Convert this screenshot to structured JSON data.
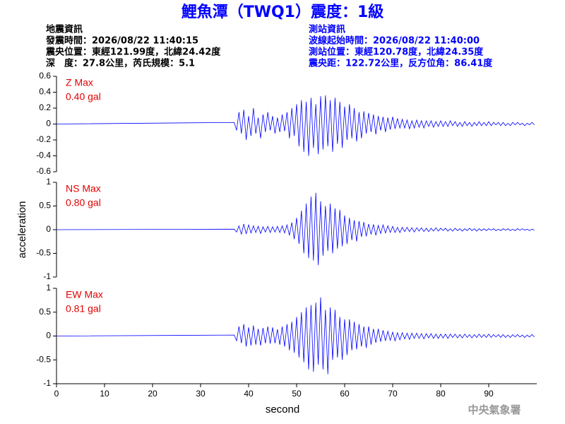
{
  "header": {
    "title": "鯉魚潭（TWQ1）震度：1級",
    "left": [
      "地震資訊",
      "發震時間：2026/08/22 11:40:15",
      "震央位置：東經121.99度，北緯24.42度",
      "深　度：27.8公里，芮氏規模：5.1"
    ],
    "right": [
      "測站資訊",
      "波線起始時間：2026/08/22 11:40:00",
      "測站位置：東經120.78度，北緯24.35度",
      "震央距：122.72公里，反方位角：86.41度"
    ]
  },
  "footer": "中央氣象署",
  "chart_data": [
    {
      "type": "line",
      "name": "Z Max",
      "max_label": "0.40 gal",
      "color": "#0000ff",
      "xlim": [
        0,
        100
      ],
      "ylim": [
        -0.6,
        0.6
      ],
      "yticks": [
        0.6,
        0.4,
        0.2,
        0,
        -0.2,
        -0.4,
        -0.6
      ],
      "x": [
        0,
        37,
        37.5,
        38,
        38.5,
        39,
        39.5,
        40,
        40.5,
        41,
        41.5,
        42,
        42.5,
        43,
        43.5,
        44,
        44.5,
        45,
        45.5,
        46,
        46.5,
        47,
        47.5,
        48,
        48.5,
        49,
        49.5,
        50,
        50.5,
        51,
        51.5,
        52,
        52.5,
        53,
        53.5,
        54,
        54.5,
        55,
        55.5,
        56,
        56.5,
        57,
        57.5,
        58,
        58.5,
        59,
        59.5,
        60,
        60.5,
        61,
        61.5,
        62,
        62.5,
        63,
        63.5,
        64,
        64.5,
        65,
        65.5,
        66,
        66.5,
        67,
        67.5,
        68,
        68.5,
        69,
        69.5,
        70,
        70.5,
        71,
        71.5,
        72,
        72.5,
        73,
        73.5,
        74,
        74.5,
        75,
        75.5,
        76,
        76.5,
        77,
        77.5,
        78,
        78.5,
        79,
        79.5,
        80,
        80.5,
        81,
        81.5,
        82,
        82.5,
        83,
        83.5,
        84,
        84.5,
        85,
        85.5,
        86,
        86.5,
        87,
        87.5,
        88,
        88.5,
        89,
        89.5,
        90,
        90.5,
        91,
        91.5,
        92,
        92.5,
        93,
        93.5,
        94,
        94.5,
        95,
        95.5,
        96,
        96.5,
        97,
        97.5,
        98,
        98.5,
        99,
        99.5
      ],
      "values": [
        0,
        0.02,
        -0.08,
        0.15,
        -0.12,
        0.18,
        -0.2,
        0.1,
        -0.15,
        0.2,
        -0.12,
        0.08,
        -0.18,
        0.12,
        -0.1,
        0.15,
        -0.08,
        0.1,
        -0.12,
        0.08,
        -0.1,
        0.12,
        -0.09,
        0.15,
        -0.18,
        0.2,
        -0.15,
        0.25,
        -0.28,
        0.3,
        -0.35,
        0.28,
        -0.4,
        0.33,
        -0.3,
        0.25,
        -0.38,
        0.35,
        -0.32,
        0.36,
        -0.28,
        0.3,
        -0.35,
        0.33,
        -0.25,
        0.28,
        -0.3,
        0.22,
        -0.2,
        0.25,
        -0.18,
        0.2,
        -0.22,
        0.15,
        -0.18,
        0.16,
        -0.12,
        0.14,
        -0.1,
        0.12,
        -0.13,
        0.1,
        -0.08,
        0.09,
        -0.1,
        0.08,
        -0.07,
        0.09,
        -0.06,
        0.07,
        -0.05,
        0.06,
        -0.05,
        0.05,
        -0.06,
        0.04,
        -0.05,
        0.05,
        -0.04,
        0.04,
        -0.05,
        0.04,
        -0.03,
        0.04,
        -0.04,
        0.03,
        -0.03,
        0.04,
        -0.03,
        0.03,
        -0.03,
        0.04,
        -0.02,
        0.03,
        -0.03,
        0.02,
        -0.03,
        0.03,
        -0.02,
        0.02,
        -0.03,
        0.02,
        -0.02,
        0.03,
        -0.02,
        0.02,
        -0.02,
        0.03,
        -0.02,
        0.02,
        -0.01,
        0.02,
        -0.02,
        0.02,
        -0.02,
        0.01,
        -0.02,
        0.02,
        -0.01,
        0.02,
        -0.01,
        0.01,
        -0.02,
        0.01,
        -0.01,
        0.02,
        -0.01
      ]
    },
    {
      "type": "line",
      "name": "NS Max",
      "max_label": "0.80 gal",
      "color": "#0000ff",
      "xlim": [
        0,
        100
      ],
      "ylim": [
        -1,
        1
      ],
      "yticks": [
        1,
        0.5,
        0,
        -0.5,
        -1
      ],
      "y_label": "acceleration",
      "x": [
        0,
        37,
        37.5,
        38,
        38.5,
        39,
        39.5,
        40,
        40.5,
        41,
        41.5,
        42,
        42.5,
        43,
        43.5,
        44,
        44.5,
        45,
        45.5,
        46,
        46.5,
        47,
        47.5,
        48,
        48.5,
        49,
        49.5,
        50,
        50.5,
        51,
        51.5,
        52,
        52.5,
        53,
        53.5,
        54,
        54.5,
        55,
        55.5,
        56,
        56.5,
        57,
        57.5,
        58,
        58.5,
        59,
        59.5,
        60,
        60.5,
        61,
        61.5,
        62,
        62.5,
        63,
        63.5,
        64,
        64.5,
        65,
        65.5,
        66,
        66.5,
        67,
        67.5,
        68,
        68.5,
        69,
        69.5,
        70,
        70.5,
        71,
        71.5,
        72,
        72.5,
        73,
        73.5,
        74,
        74.5,
        75,
        75.5,
        76,
        76.5,
        77,
        77.5,
        78,
        78.5,
        79,
        79.5,
        80,
        80.5,
        81,
        81.5,
        82,
        82.5,
        83,
        83.5,
        84,
        84.5,
        85,
        85.5,
        86,
        86.5,
        87,
        87.5,
        88,
        88.5,
        89,
        89.5,
        90,
        90.5,
        91,
        91.5,
        92,
        92.5,
        93,
        93.5,
        94,
        94.5,
        95,
        95.5,
        96,
        96.5,
        97,
        97.5,
        98,
        98.5,
        99,
        99.5
      ],
      "values": [
        0,
        0.01,
        -0.05,
        0.08,
        -0.1,
        0.12,
        -0.09,
        0.1,
        -0.07,
        0.08,
        -0.06,
        0.07,
        -0.08,
        0.06,
        -0.05,
        0.07,
        -0.06,
        0.06,
        -0.05,
        0.07,
        -0.06,
        0.08,
        -0.07,
        0.1,
        -0.12,
        0.15,
        -0.2,
        0.25,
        -0.3,
        0.4,
        -0.5,
        0.55,
        -0.6,
        0.7,
        -0.65,
        0.78,
        -0.75,
        0.6,
        -0.55,
        0.5,
        -0.45,
        0.55,
        -0.5,
        0.45,
        -0.4,
        0.42,
        -0.35,
        0.3,
        -0.3,
        0.25,
        -0.22,
        0.2,
        -0.25,
        0.18,
        -0.15,
        0.16,
        -0.14,
        0.12,
        -0.1,
        0.11,
        -0.12,
        0.09,
        -0.08,
        0.1,
        -0.07,
        0.08,
        -0.06,
        0.07,
        -0.06,
        0.05,
        -0.06,
        0.05,
        -0.04,
        0.05,
        -0.04,
        0.04,
        -0.05,
        0.04,
        -0.03,
        0.04,
        -0.04,
        0.03,
        -0.04,
        0.03,
        -0.03,
        0.04,
        -0.03,
        0.03,
        -0.02,
        0.03,
        -0.03,
        0.02,
        -0.03,
        0.03,
        -0.02,
        0.02,
        -0.03,
        0.02,
        -0.02,
        0.03,
        -0.02,
        0.02,
        -0.03,
        0.02,
        -0.02,
        0.02,
        -0.02,
        0.02,
        -0.01,
        0.02,
        -0.02,
        0.01,
        -0.02,
        0.02,
        -0.01,
        0.02,
        -0.02,
        0.01,
        -0.02,
        0.02,
        -0.01,
        0.02,
        -0.01,
        0.01,
        -0.02,
        0.01,
        -0.01
      ]
    },
    {
      "type": "line",
      "name": "EW Max",
      "max_label": "0.81 gal",
      "color": "#0000ff",
      "xlim": [
        0,
        100
      ],
      "ylim": [
        -1,
        1
      ],
      "yticks": [
        1,
        0.5,
        0,
        -0.5,
        -1
      ],
      "xticks": [
        0,
        10,
        20,
        30,
        40,
        50,
        60,
        70,
        80,
        90
      ],
      "x_label": "second",
      "x": [
        0,
        37,
        37.5,
        38,
        38.5,
        39,
        39.5,
        40,
        40.5,
        41,
        41.5,
        42,
        42.5,
        43,
        43.5,
        44,
        44.5,
        45,
        45.5,
        46,
        46.5,
        47,
        47.5,
        48,
        48.5,
        49,
        49.5,
        50,
        50.5,
        51,
        51.5,
        52,
        52.5,
        53,
        53.5,
        54,
        54.5,
        55,
        55.5,
        56,
        56.5,
        57,
        57.5,
        58,
        58.5,
        59,
        59.5,
        60,
        60.5,
        61,
        61.5,
        62,
        62.5,
        63,
        63.5,
        64,
        64.5,
        65,
        65.5,
        66,
        66.5,
        67,
        67.5,
        68,
        68.5,
        69,
        69.5,
        70,
        70.5,
        71,
        71.5,
        72,
        72.5,
        73,
        73.5,
        74,
        74.5,
        75,
        75.5,
        76,
        76.5,
        77,
        77.5,
        78,
        78.5,
        79,
        79.5,
        80,
        80.5,
        81,
        81.5,
        82,
        82.5,
        83,
        83.5,
        84,
        84.5,
        85,
        85.5,
        86,
        86.5,
        87,
        87.5,
        88,
        88.5,
        89,
        89.5,
        90,
        90.5,
        91,
        91.5,
        92,
        92.5,
        93,
        93.5,
        94,
        94.5,
        95,
        95.5,
        96,
        96.5,
        97,
        97.5,
        98,
        98.5,
        99,
        99.5
      ],
      "values": [
        0,
        0.02,
        -0.1,
        0.2,
        -0.15,
        0.25,
        -0.22,
        0.18,
        -0.2,
        0.22,
        -0.18,
        0.15,
        -0.2,
        0.17,
        -0.15,
        0.2,
        -0.16,
        0.18,
        -0.15,
        0.14,
        -0.18,
        0.2,
        -0.22,
        0.25,
        -0.3,
        0.3,
        -0.35,
        0.4,
        -0.45,
        0.5,
        -0.55,
        0.6,
        -0.7,
        0.65,
        -0.75,
        0.7,
        -0.6,
        0.81,
        -0.7,
        0.55,
        -0.8,
        0.6,
        -0.5,
        0.55,
        -0.45,
        0.4,
        -0.5,
        0.35,
        -0.4,
        0.35,
        -0.3,
        0.3,
        -0.28,
        0.25,
        -0.22,
        0.2,
        -0.25,
        0.2,
        -0.18,
        0.15,
        -0.14,
        0.15,
        -0.12,
        0.12,
        -0.1,
        0.1,
        -0.09,
        0.08,
        -0.1,
        0.07,
        -0.08,
        0.07,
        -0.06,
        0.06,
        -0.07,
        0.06,
        -0.05,
        0.06,
        -0.05,
        0.05,
        -0.06,
        0.05,
        -0.04,
        0.05,
        -0.05,
        0.04,
        -0.05,
        0.04,
        -0.04,
        0.04,
        -0.05,
        0.04,
        -0.03,
        0.04,
        -0.04,
        0.03,
        -0.04,
        0.04,
        -0.03,
        0.03,
        -0.04,
        0.03,
        -0.03,
        0.04,
        -0.03,
        0.03,
        -0.03,
        0.04,
        -0.03,
        0.03,
        -0.02,
        0.03,
        -0.03,
        0.03,
        -0.03,
        0.02,
        -0.03,
        0.03,
        -0.02,
        0.03,
        -0.02,
        0.02,
        -0.03,
        0.02,
        -0.02,
        0.03,
        -0.02
      ]
    }
  ]
}
